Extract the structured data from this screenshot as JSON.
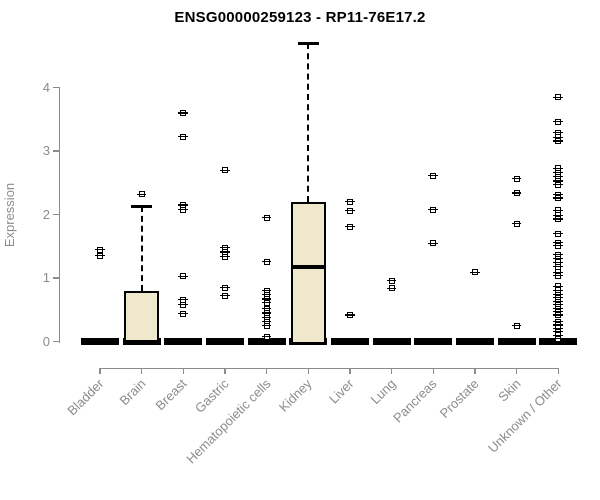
{
  "chart_data": {
    "type": "boxplot",
    "title": "ENSG00000259123 - RP11-76E17.2",
    "ylabel": "Expression",
    "xlabel": "",
    "ylim": [
      0,
      4.7
    ],
    "yticks": [
      0,
      1,
      2,
      3,
      4
    ],
    "grid": false,
    "legend": "none",
    "categories": [
      "Bladder",
      "Brain",
      "Breast",
      "Gastric",
      "Hematopoietic cells",
      "Kidney",
      "Liver",
      "Lung",
      "Pancreas",
      "Prostate",
      "Skin",
      "Unknown / Other"
    ],
    "series": [
      {
        "category": "Bladder",
        "q1": 0,
        "median": 0,
        "q3": 0,
        "whisker_low": 0,
        "whisker_high": 0,
        "outliers": [
          1.45,
          1.35
        ]
      },
      {
        "category": "Brain",
        "q1": 0,
        "median": 0,
        "q3": 0.8,
        "whisker_low": 0,
        "whisker_high": 2.13,
        "outliers": [
          2.32
        ]
      },
      {
        "category": "Breast",
        "q1": 0,
        "median": 0,
        "q3": 0,
        "whisker_low": 0,
        "whisker_high": 0,
        "outliers": [
          3.6,
          3.23,
          2.15,
          2.08,
          1.03,
          0.66,
          0.58,
          0.44
        ]
      },
      {
        "category": "Gastric",
        "q1": 0,
        "median": 0,
        "q3": 0,
        "whisker_low": 0,
        "whisker_high": 0,
        "outliers": [
          2.7,
          1.48,
          1.41,
          1.34,
          0.85,
          0.72
        ]
      },
      {
        "category": "Hematopoietic cells",
        "q1": 0,
        "median": 0,
        "q3": 0,
        "whisker_low": 0,
        "whisker_high": 0,
        "outliers": [
          1.95,
          1.26,
          0.8,
          0.74,
          0.67,
          0.61,
          0.52,
          0.45,
          0.38,
          0.31,
          0.25,
          0.08
        ]
      },
      {
        "category": "Kidney",
        "q1": 0,
        "median": 1.18,
        "q3": 2.2,
        "whisker_low": 0,
        "whisker_high": 4.7,
        "outliers": []
      },
      {
        "category": "Liver",
        "q1": 0,
        "median": 0,
        "q3": 0,
        "whisker_low": 0,
        "whisker_high": 0,
        "outliers": [
          2.2,
          2.06,
          1.81,
          0.42
        ]
      },
      {
        "category": "Lung",
        "q1": 0,
        "median": 0,
        "q3": 0,
        "whisker_low": 0,
        "whisker_high": 0,
        "outliers": [
          0.96,
          0.84
        ]
      },
      {
        "category": "Pancreas",
        "q1": 0,
        "median": 0,
        "q3": 0,
        "whisker_low": 0,
        "whisker_high": 0,
        "outliers": [
          2.61,
          2.08,
          1.55
        ]
      },
      {
        "category": "Prostate",
        "q1": 0,
        "median": 0,
        "q3": 0,
        "whisker_low": 0,
        "whisker_high": 0,
        "outliers": [
          1.09
        ]
      },
      {
        "category": "Skin",
        "q1": 0,
        "median": 0,
        "q3": 0,
        "whisker_low": 0,
        "whisker_high": 0,
        "outliers": [
          2.57,
          2.34,
          1.86,
          0.25
        ]
      },
      {
        "category": "Unknown / Other",
        "q1": 0,
        "median": 0,
        "q3": 0,
        "whisker_low": 0,
        "whisker_high": 0,
        "outliers": [
          3.85,
          3.46,
          3.29,
          3.22,
          3.16,
          2.73,
          2.66,
          2.6,
          2.53,
          2.47,
          2.31,
          2.26,
          2.07,
          1.99,
          1.93,
          1.7,
          1.56,
          1.51,
          1.37,
          1.31,
          1.25,
          1.18,
          1.09,
          1.04,
          0.87,
          0.81,
          0.74,
          0.69,
          0.63,
          0.58,
          0.52,
          0.47,
          0.42,
          0.31,
          0.26,
          0.21,
          0.16,
          0.1,
          0.05
        ]
      }
    ],
    "colors": {
      "box_fill": "#efe8cd",
      "stroke": "#000000",
      "axis": "#8c8c8c",
      "tick_text": "#8c8c8c",
      "title_text": "#000000",
      "background": "#ffffff"
    }
  }
}
